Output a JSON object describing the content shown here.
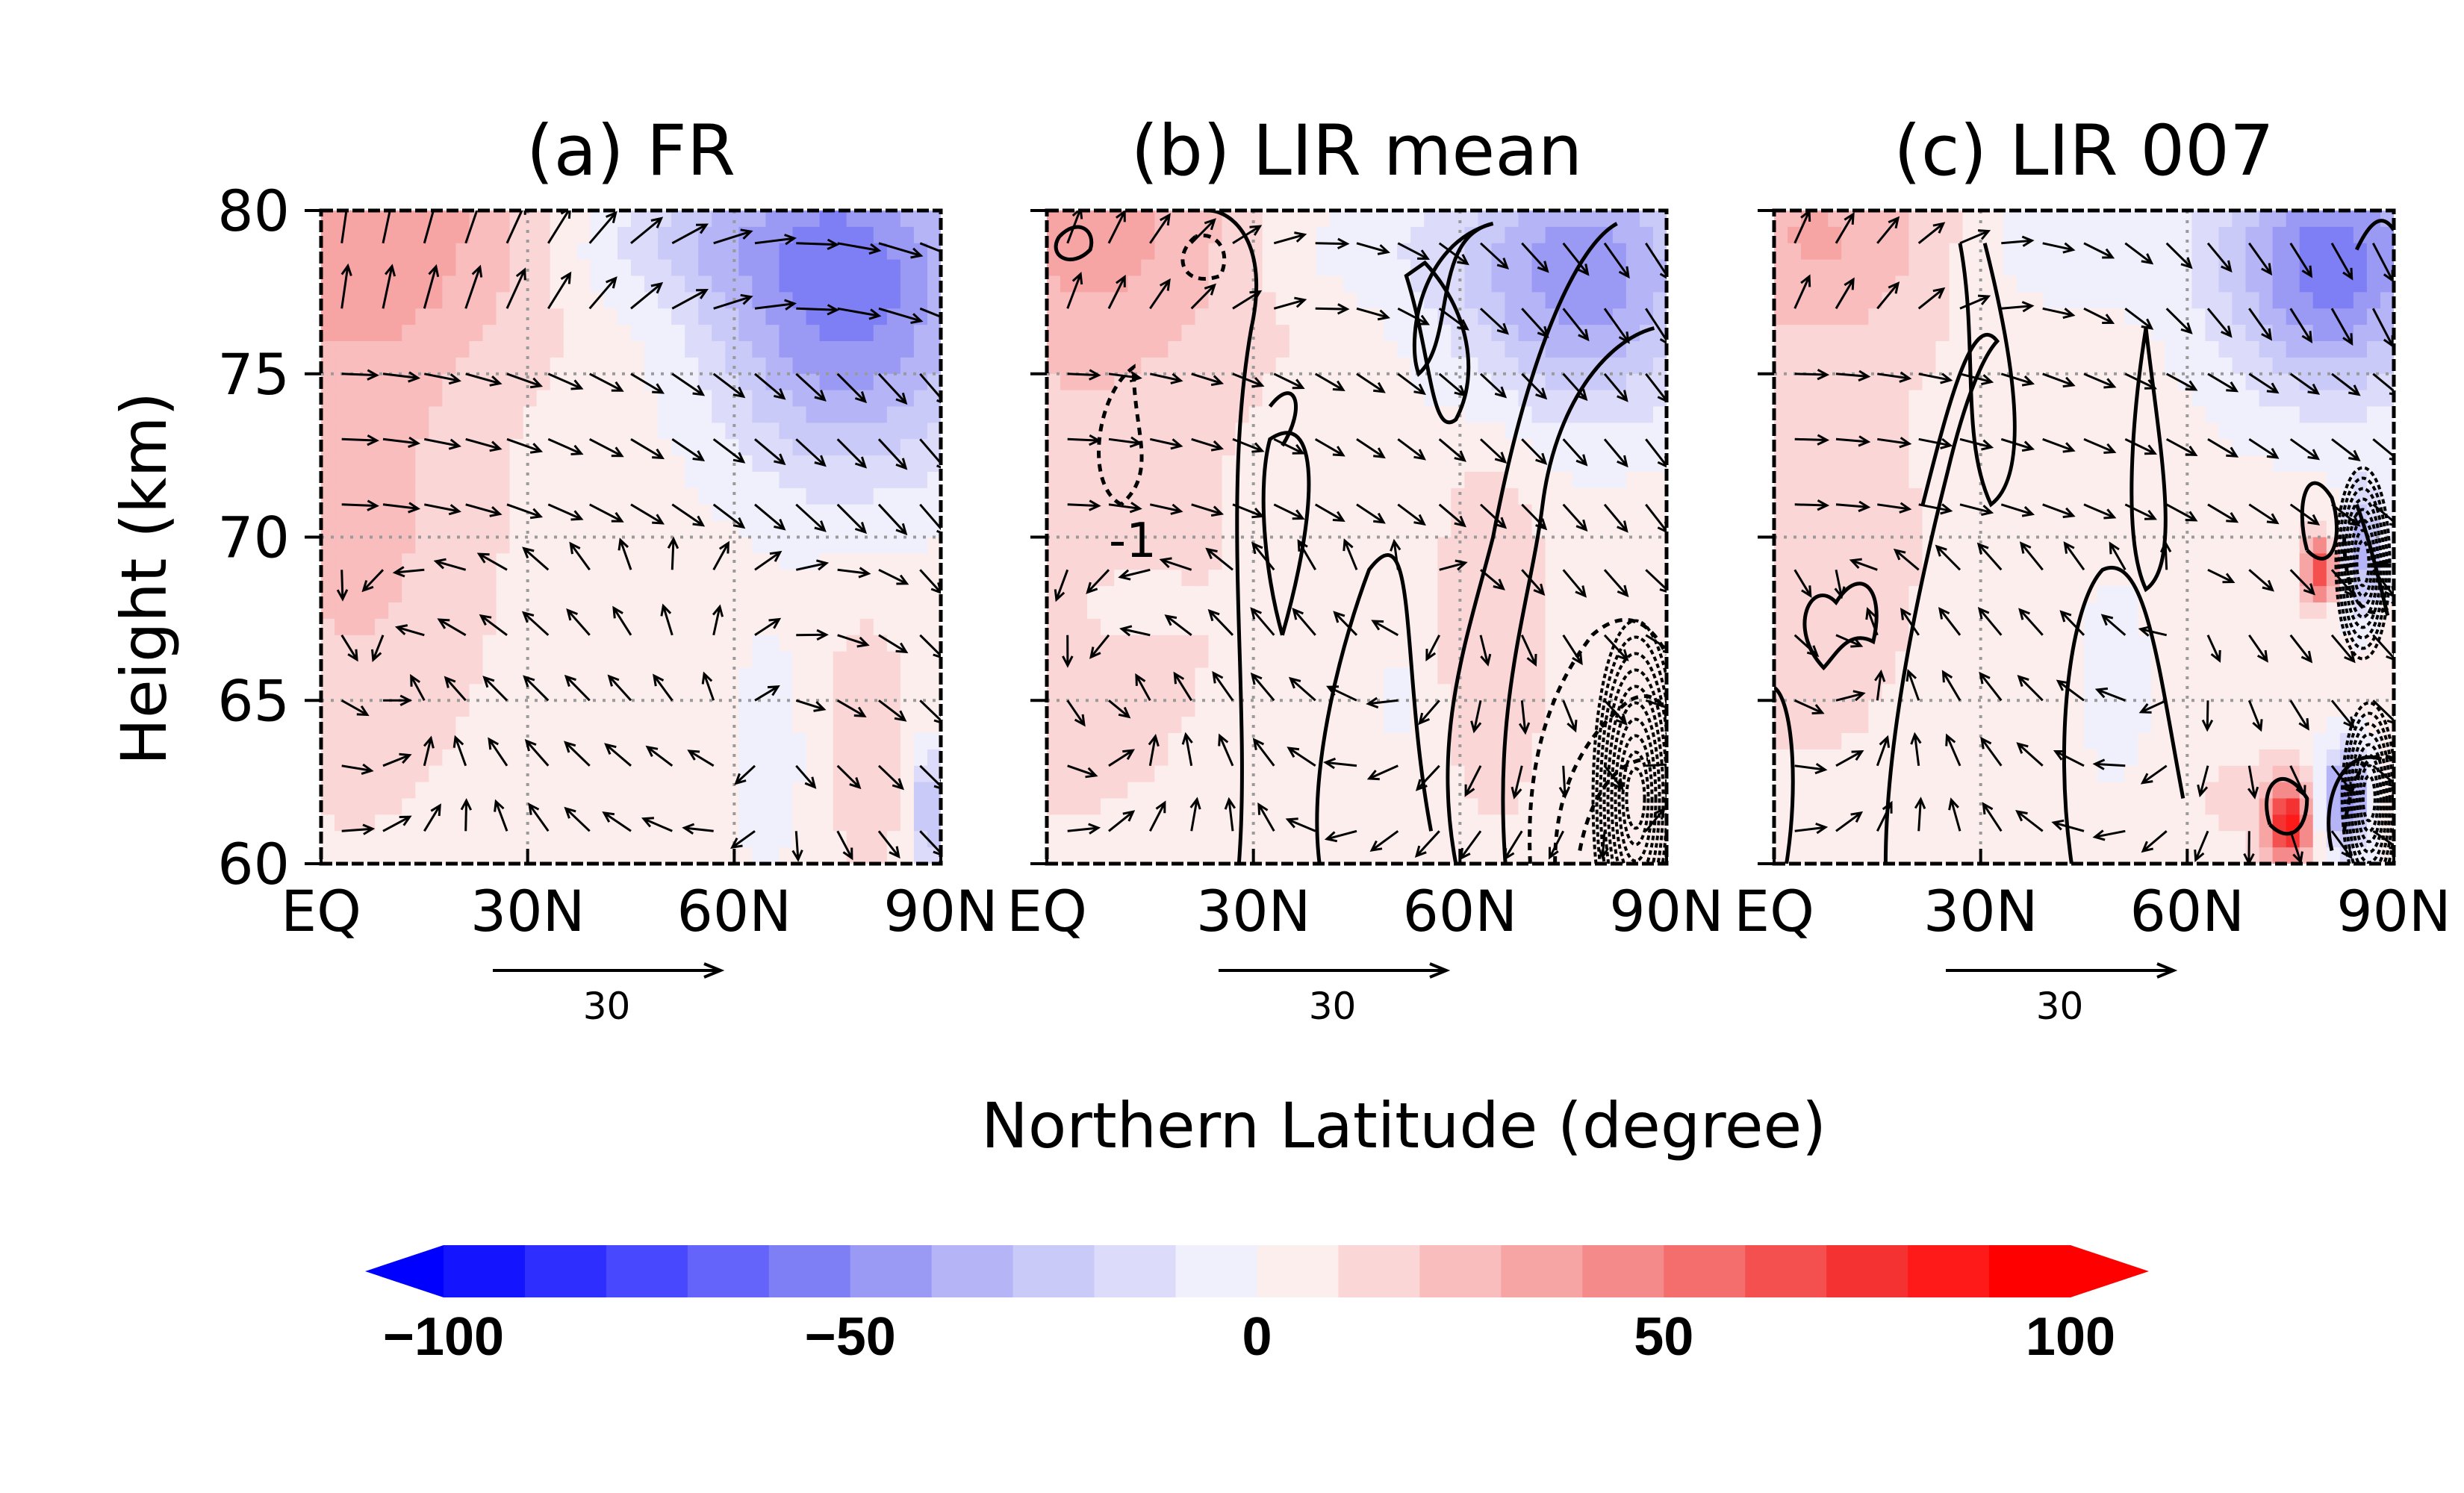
{
  "figure": {
    "y_axis_label": "Height (km)",
    "x_axis_label": "Northern Latitude (degree)",
    "reference_vector_label": "30"
  },
  "chart_data": [
    {
      "type": "heatmap",
      "title": "(a) FR",
      "xlabel": "Northern Latitude (degree)",
      "ylabel": "Height (km)",
      "x_ticks": [
        "EQ",
        "30N",
        "60N",
        "90N"
      ],
      "y_ticks": [
        "60",
        "65",
        "70",
        "75",
        "80"
      ],
      "xlim": [
        0,
        90
      ],
      "ylim": [
        60,
        80
      ],
      "grid": true,
      "contour_labels": [],
      "reference_vector": "30"
    },
    {
      "type": "heatmap",
      "title": "(b) LIR mean",
      "xlabel": "Northern Latitude (degree)",
      "ylabel": "Height (km)",
      "x_ticks": [
        "EQ",
        "30N",
        "60N",
        "90N"
      ],
      "y_ticks": [
        "60",
        "65",
        "70",
        "75",
        "80"
      ],
      "xlim": [
        0,
        90
      ],
      "ylim": [
        60,
        80
      ],
      "grid": true,
      "contour_labels": [
        "-1"
      ],
      "reference_vector": "30"
    },
    {
      "type": "heatmap",
      "title": "(c) LIR 007",
      "xlabel": "Northern Latitude (degree)",
      "ylabel": "Height (km)",
      "x_ticks": [
        "EQ",
        "30N",
        "60N",
        "90N"
      ],
      "y_ticks": [
        "60",
        "65",
        "70",
        "75",
        "80"
      ],
      "xlim": [
        0,
        90
      ],
      "ylim": [
        60,
        80
      ],
      "grid": true,
      "contour_labels": [],
      "reference_vector": "30"
    }
  ],
  "colorbar": {
    "range": [
      -100,
      100
    ],
    "step": 10,
    "extend": "both",
    "tick_labels": [
      "-100",
      "-50",
      "0",
      "50",
      "100"
    ],
    "colors": [
      "#1414ff",
      "#2e2eff",
      "#4848ff",
      "#6464fa",
      "#7f7ff5",
      "#9a9af5",
      "#b4b4f7",
      "#cacaf8",
      "#dcdcfa",
      "#f0f0fc",
      "#fdeeee",
      "#fbd6d6",
      "#f9bdbd",
      "#f7a4a4",
      "#f58a8a",
      "#f56e6e",
      "#f55050",
      "#f53232",
      "#ff1a1a",
      "#ff0000"
    ],
    "low_color": "#0000ff",
    "high_color": "#ff0000"
  }
}
